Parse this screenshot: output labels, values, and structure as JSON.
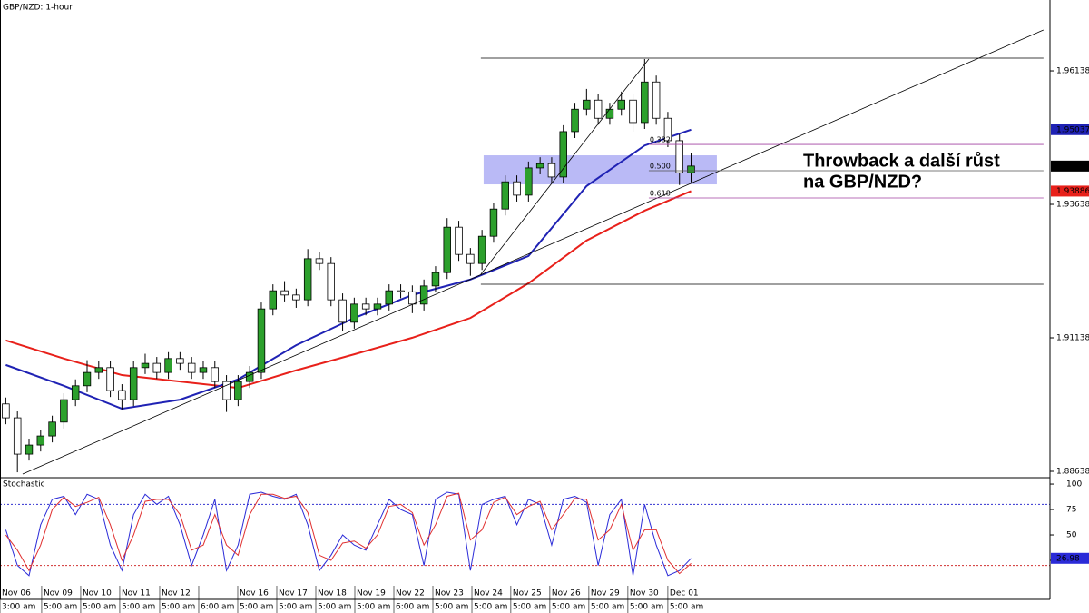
{
  "chart_data": [
    {
      "type": "candlestick",
      "title": "GBP/NZD: 1-hour",
      "up_color": "#2ca02c",
      "down_color": "#ffffff",
      "outline_color": "#000000",
      "candles": [
        [
          1.899,
          1.9002,
          1.8952,
          1.8964
        ],
        [
          1.8964,
          1.8976,
          1.8862,
          1.8896
        ],
        [
          1.8896,
          1.8925,
          1.8884,
          1.8913
        ],
        [
          1.8913,
          1.8942,
          1.8901,
          1.893
        ],
        [
          1.893,
          1.8968,
          1.8918,
          1.8956
        ],
        [
          1.8956,
          1.901,
          1.8944,
          1.8998
        ],
        [
          1.8998,
          1.9036,
          1.8986,
          1.9024
        ],
        [
          1.9024,
          1.9072,
          1.9012,
          1.9049
        ],
        [
          1.9049,
          1.907,
          1.9037,
          1.9058
        ],
        [
          1.9058,
          1.907,
          1.9003,
          1.9015
        ],
        [
          1.9015,
          1.9027,
          1.898,
          1.8998
        ],
        [
          1.8998,
          1.907,
          1.8986,
          1.9058
        ],
        [
          1.9058,
          1.9084,
          1.9046,
          1.9066
        ],
        [
          1.9066,
          1.9078,
          1.9037,
          1.9049
        ],
        [
          1.9049,
          1.9087,
          1.9037,
          1.9075
        ],
        [
          1.9075,
          1.9087,
          1.9054,
          1.9066
        ],
        [
          1.9066,
          1.9078,
          1.9037,
          1.9049
        ],
        [
          1.9049,
          1.907,
          1.9037,
          1.9058
        ],
        [
          1.9058,
          1.907,
          1.902,
          1.9032
        ],
        [
          1.9032,
          1.9044,
          1.8975,
          1.8998
        ],
        [
          1.8998,
          1.9044,
          1.8986,
          1.9032
        ],
        [
          1.9032,
          1.9061,
          1.902,
          1.9049
        ],
        [
          1.9049,
          1.918,
          1.9037,
          1.9168
        ],
        [
          1.9168,
          1.9214,
          1.9156,
          1.9202
        ],
        [
          1.9202,
          1.922,
          1.9182,
          1.9194
        ],
        [
          1.9194,
          1.9206,
          1.917,
          1.9185
        ],
        [
          1.9185,
          1.928,
          1.9173,
          1.9262
        ],
        [
          1.9262,
          1.9274,
          1.9241,
          1.9253
        ],
        [
          1.9253,
          1.9265,
          1.9173,
          1.9185
        ],
        [
          1.9185,
          1.9197,
          1.9126,
          1.9143
        ],
        [
          1.9143,
          1.9189,
          1.9131,
          1.9177
        ],
        [
          1.9177,
          1.9189,
          1.9156,
          1.9168
        ],
        [
          1.9168,
          1.9189,
          1.9156,
          1.9177
        ],
        [
          1.9177,
          1.9214,
          1.9165,
          1.9202
        ],
        [
          1.9202,
          1.9214,
          1.9188,
          1.92
        ],
        [
          1.92,
          1.9212,
          1.916,
          1.9177
        ],
        [
          1.9177,
          1.9223,
          1.9165,
          1.9211
        ],
        [
          1.9211,
          1.9248,
          1.9199,
          1.9236
        ],
        [
          1.9236,
          1.9338,
          1.9224,
          1.9321
        ],
        [
          1.9321,
          1.9333,
          1.9258,
          1.927
        ],
        [
          1.927,
          1.9282,
          1.923,
          1.9253
        ],
        [
          1.9253,
          1.9316,
          1.9241,
          1.9304
        ],
        [
          1.9304,
          1.9367,
          1.9292,
          1.9355
        ],
        [
          1.9355,
          1.9418,
          1.9343,
          1.9406
        ],
        [
          1.9406,
          1.9418,
          1.9369,
          1.9381
        ],
        [
          1.9381,
          1.9444,
          1.9369,
          1.9432
        ],
        [
          1.9432,
          1.9452,
          1.942,
          1.944
        ],
        [
          1.944,
          1.9452,
          1.9403,
          1.9415
        ],
        [
          1.9415,
          1.9512,
          1.9403,
          1.95
        ],
        [
          1.95,
          1.9554,
          1.9488,
          1.9542
        ],
        [
          1.9542,
          1.958,
          1.953,
          1.9559
        ],
        [
          1.9559,
          1.9571,
          1.9513,
          1.9525
        ],
        [
          1.9525,
          1.9554,
          1.9513,
          1.9542
        ],
        [
          1.9542,
          1.9575,
          1.953,
          1.9559
        ],
        [
          1.9559,
          1.9571,
          1.95,
          1.9517
        ],
        [
          1.9517,
          1.9636,
          1.9505,
          1.9593
        ],
        [
          1.9593,
          1.9605,
          1.9513,
          1.9525
        ],
        [
          1.9525,
          1.9537,
          1.9471,
          1.9483
        ],
        [
          1.9483,
          1.9495,
          1.94,
          1.9423
        ],
        [
          1.9423,
          1.946,
          1.9405,
          1.94355
        ]
      ],
      "series": [
        {
          "color": "#e8201a",
          "x": [
            0,
            5,
            10,
            15,
            20,
            25,
            30,
            35,
            40,
            45,
            50,
            55,
            59
          ],
          "values": [
            1.9109,
            1.9075,
            1.9044,
            1.9032,
            1.902,
            1.9053,
            1.9083,
            1.9114,
            1.9151,
            1.9216,
            1.9296,
            1.9352,
            1.93886
          ]
        },
        {
          "color": "#1f22b4",
          "x": [
            0,
            5,
            10,
            15,
            20,
            25,
            30,
            35,
            40,
            45,
            50,
            55,
            59
          ],
          "values": [
            1.9063,
            1.9024,
            1.8981,
            1.8998,
            1.9036,
            1.91,
            1.9151,
            1.9194,
            1.9223,
            1.9267,
            1.9398,
            1.9474,
            1.95037
          ]
        }
      ],
      "xlim": [
        -0.5,
        89.9
      ],
      "ylim": [
        1.88536,
        1.97465
      ],
      "yticks": [
        1.96138,
        1.93638,
        1.91138,
        1.88638
      ],
      "xticks": [
        {
          "value": -0.5,
          "label": "Nov 06"
        },
        {
          "value": 3.09,
          "label": "Nov 09"
        },
        {
          "value": 6.45,
          "label": "Nov 10"
        },
        {
          "value": 9.81,
          "label": "Nov 11"
        },
        {
          "value": 13.25,
          "label": "Nov 12"
        },
        {
          "value": 16.61,
          "label": null
        },
        {
          "value": 19.97,
          "label": "Nov 16"
        },
        {
          "value": 23.33,
          "label": "Nov 17"
        },
        {
          "value": 26.69,
          "label": "Nov 18"
        },
        {
          "value": 30.05,
          "label": "Nov 19"
        },
        {
          "value": 33.41,
          "label": "Nov 22"
        },
        {
          "value": 36.77,
          "label": "Nov 23"
        },
        {
          "value": 40.13,
          "label": "Nov 24"
        },
        {
          "value": 43.48,
          "label": "Nov 25"
        },
        {
          "value": 46.84,
          "label": "Nov 26"
        },
        {
          "value": 50.2,
          "label": "Nov 29"
        },
        {
          "value": 53.56,
          "label": "Nov 30"
        },
        {
          "value": 57,
          "label": "Dec 01"
        }
      ],
      "xtick_times": [
        "3:00 am",
        "5:00 am",
        "5:00 am",
        "5:00 am",
        "5:00 am",
        "6:00 am",
        "5:00 am",
        "5:00 am",
        "5:00 am",
        "5:00 am",
        "6:00 am",
        "5:00 am",
        "5:00 am",
        "5:00 am",
        "5:00 am",
        "5:00 am",
        "5:00 am",
        "5:00 am"
      ],
      "zone": {
        "x": [
          41.14,
          61.22
        ],
        "prices": [
          1.94556,
          1.94012
        ],
        "color": "#8c8cf0"
      },
      "lines": [
        {
          "x": [
            1.45,
            89.34
          ],
          "prices": [
            1.88587,
            1.96904
          ],
          "color": "#000000"
        },
        {
          "x": [
            40.9,
            55.36
          ],
          "prices": [
            1.92329,
            1.9636
          ],
          "color": "#000000"
        },
        {
          "x": [
            40.9,
            89.34
          ],
          "prices": [
            1.96376,
            1.96376
          ],
          "color": "#000000"
        },
        {
          "x": [
            40.9,
            89.34
          ],
          "prices": [
            1.92142,
            1.92142
          ],
          "color": "#000000"
        }
      ],
      "fib_levels": [
        {
          "label": "0.382",
          "price": 1.9476,
          "x": [
            55.36,
            89.34
          ],
          "color": "#a040a0"
        },
        {
          "label": "0.500",
          "price": 1.94267,
          "x": [
            55.36,
            89.34
          ],
          "color": "#505050"
        },
        {
          "label": "0.618",
          "price": 1.93757,
          "x": [
            55.36,
            89.34
          ],
          "color": "#a040a0"
        }
      ],
      "annotation": [
        "Throwback a další růst",
        "na GBP/NZD?"
      ]
    },
    {
      "type": "stochastic",
      "title": "Stochastic",
      "series": [
        {
          "color": "#2b2bd8",
          "values": [
            55,
            20,
            10,
            60,
            85,
            88,
            70,
            90,
            85,
            40,
            15,
            70,
            90,
            80,
            88,
            60,
            20,
            50,
            85,
            15,
            40,
            90,
            92,
            88,
            85,
            90,
            60,
            15,
            30,
            50,
            40,
            35,
            60,
            85,
            75,
            70,
            20,
            85,
            92,
            90,
            15,
            80,
            85,
            88,
            60,
            85,
            80,
            40,
            85,
            88,
            82,
            20,
            70,
            85,
            10,
            80,
            40,
            10,
            15,
            26.98
          ]
        },
        {
          "color": "#e03030",
          "values": [
            50,
            35,
            15,
            40,
            75,
            87,
            78,
            82,
            87,
            60,
            25,
            50,
            83,
            85,
            85,
            70,
            35,
            40,
            70,
            40,
            30,
            70,
            90,
            90,
            86,
            88,
            72,
            30,
            25,
            42,
            44,
            37,
            50,
            78,
            80,
            72,
            40,
            60,
            88,
            91,
            45,
            55,
            82,
            87,
            70,
            78,
            83,
            55,
            70,
            86,
            85,
            45,
            55,
            80,
            35,
            55,
            55,
            25,
            12,
            22
          ]
        }
      ],
      "ylim": [
        -13.4,
        105.4
      ],
      "yticks": [
        100,
        75,
        50,
        25
      ],
      "levels": [
        {
          "value": 80,
          "color": "#3030d0"
        },
        {
          "value": 20,
          "color": "#d03030"
        }
      ]
    }
  ]
}
